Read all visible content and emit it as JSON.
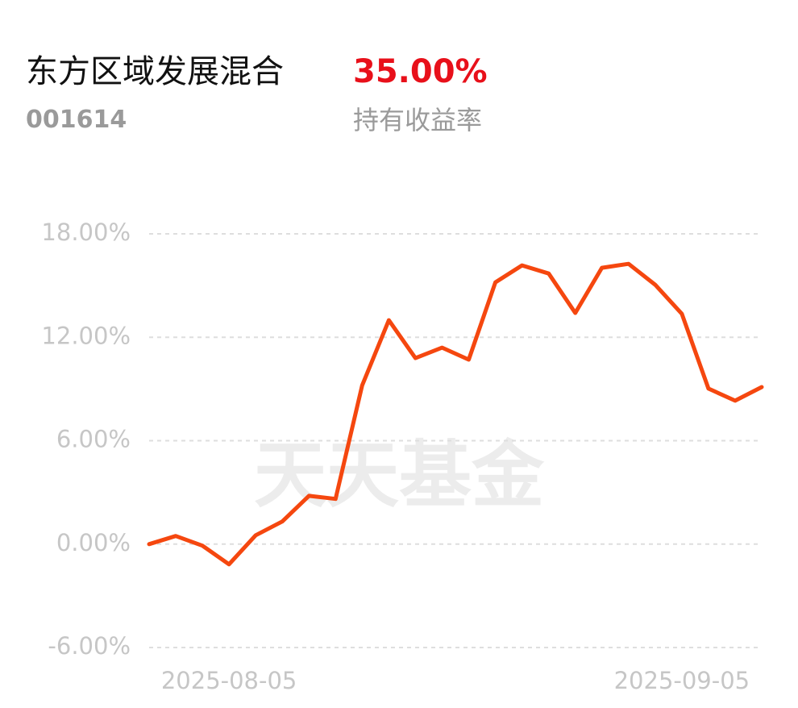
{
  "header": {
    "title": "东方区域发展混合",
    "return_value": "35.00%",
    "code": "001614",
    "return_label": "持有收益率"
  },
  "watermark": "天天基金",
  "chart_data": {
    "type": "line",
    "categories": [
      null,
      null,
      null,
      "2025-08-05",
      null,
      null,
      null,
      null,
      null,
      null,
      null,
      null,
      null,
      null,
      null,
      null,
      null,
      null,
      null,
      null,
      "2025-09-05",
      null,
      null,
      null
    ],
    "values": [
      0,
      0.47,
      -0.09,
      -1.17,
      0.51,
      1.31,
      2.8,
      2.62,
      9.21,
      12.99,
      10.79,
      11.4,
      10.7,
      15.19,
      16.17,
      15.7,
      13.41,
      16.03,
      16.26,
      15.05,
      13.36,
      9.02,
      8.32,
      9.11
    ],
    "color": "#f5470f",
    "ylim": [
      -6,
      18
    ],
    "yticks": [
      {
        "value": -6,
        "label": "-6.00%"
      },
      {
        "value": 0,
        "label": "0.00%"
      },
      {
        "value": 6,
        "label": "6.00%"
      },
      {
        "value": 12,
        "label": "12.00%"
      },
      {
        "value": 18,
        "label": "18.00%"
      }
    ],
    "grid": true
  }
}
